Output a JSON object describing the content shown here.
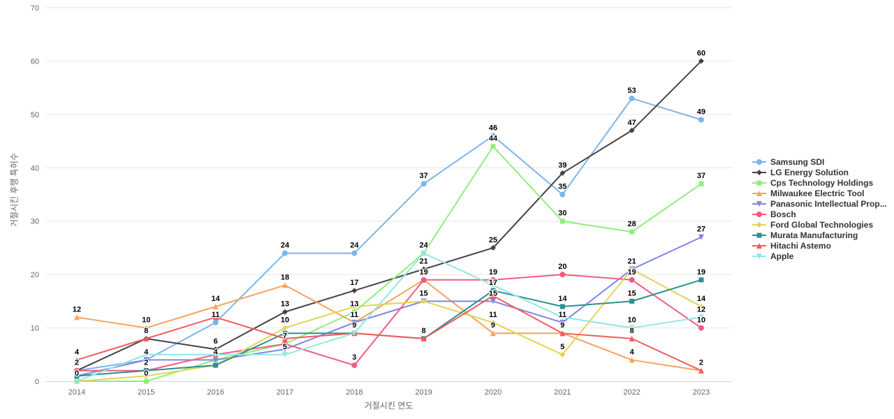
{
  "chart_data": {
    "type": "line",
    "title": "",
    "xlabel": "거절시킨 연도",
    "ylabel": "거절시킨 후행 특허수",
    "x": [
      2014,
      2015,
      2016,
      2017,
      2018,
      2019,
      2020,
      2021,
      2022,
      2023
    ],
    "ylim": [
      0,
      70
    ],
    "ytick_step": 10,
    "grid": true,
    "legend_position": "right",
    "gridline_color": "#e6e6e6",
    "axis_line_color": "#ccd6eb",
    "series": [
      {
        "name": "Samsung SDI",
        "color": "#7cb5ec",
        "marker": "circle",
        "values": [
          2,
          4,
          11,
          24,
          24,
          37,
          46,
          35,
          53,
          49
        ]
      },
      {
        "name": "LG Energy Solution",
        "color": "#434348",
        "marker": "diamond",
        "values": [
          2,
          8,
          6,
          13,
          17,
          21,
          25,
          39,
          47,
          60
        ]
      },
      {
        "name": "Cps Technology Holdings",
        "color": "#90ed7d",
        "marker": "square",
        "values": [
          0,
          0,
          4,
          7,
          13,
          24,
          44,
          30,
          28,
          37
        ]
      },
      {
        "name": "Milwaukee Electric Tool",
        "color": "#f7a35c",
        "marker": "triangle",
        "values": [
          12,
          10,
          14,
          18,
          11,
          19,
          9,
          9,
          4,
          2
        ]
      },
      {
        "name": "Panasonic Intellectual Prop...",
        "color": "#8085e9",
        "marker": "triangle-down",
        "values": [
          1,
          4,
          4,
          6,
          11,
          15,
          15,
          11,
          21,
          27
        ]
      },
      {
        "name": "Bosch",
        "color": "#f15c80",
        "marker": "circle",
        "values": [
          2,
          2,
          5,
          7,
          3,
          19,
          19,
          20,
          19,
          10
        ]
      },
      {
        "name": "Ford Global Technologies",
        "color": "#e4d354",
        "marker": "diamond",
        "values": [
          0,
          1,
          3,
          10,
          14,
          15,
          11,
          5,
          21,
          14
        ]
      },
      {
        "name": "Murata Manufacturing",
        "color": "#2b908f",
        "marker": "square",
        "values": [
          1,
          2,
          3,
          9,
          9,
          8,
          17,
          14,
          15,
          19
        ]
      },
      {
        "name": "Hitachi Astemo",
        "color": "#f45b5b",
        "marker": "triangle",
        "values": [
          4,
          8,
          12,
          8,
          9,
          8,
          16,
          9,
          8,
          2
        ]
      },
      {
        "name": "Apple",
        "color": "#91e8e1",
        "marker": "triangle-down",
        "values": [
          0,
          5,
          5,
          5,
          9,
          24,
          18,
          12,
          10,
          12
        ]
      }
    ]
  }
}
